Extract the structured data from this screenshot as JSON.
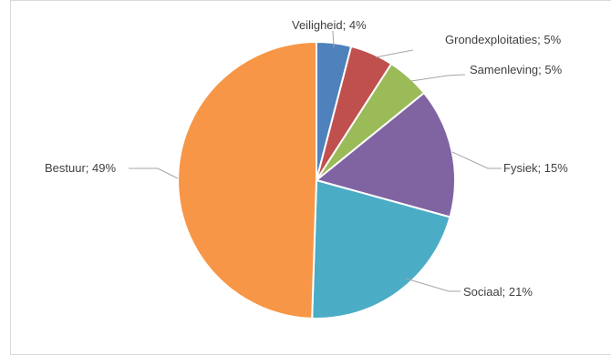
{
  "chart_data": {
    "type": "pie",
    "title": "",
    "slices": [
      {
        "label": "Veiligheid",
        "value": 4,
        "display": "Veiligheid; 4%",
        "color": "#4f81bd"
      },
      {
        "label": "Grondexploitaties",
        "value": 5,
        "display": "Grondexploitaties; 5%",
        "color": "#c0504d"
      },
      {
        "label": "Samenleving",
        "value": 5,
        "display": "Samenleving; 5%",
        "color": "#9bbb59"
      },
      {
        "label": "Fysiek",
        "value": 15,
        "display": "Fysiek; 15%",
        "color": "#8064a2"
      },
      {
        "label": "Sociaal",
        "value": 21,
        "display": "Sociaal; 21%",
        "color": "#4bacc6"
      },
      {
        "label": "Bestuur",
        "value": 49,
        "display": "Bestuur; 49%",
        "color": "#f79646"
      }
    ],
    "start": "12 o'clock",
    "direction": "clockwise",
    "legend": "none",
    "data_labels": "outside with leader lines"
  }
}
